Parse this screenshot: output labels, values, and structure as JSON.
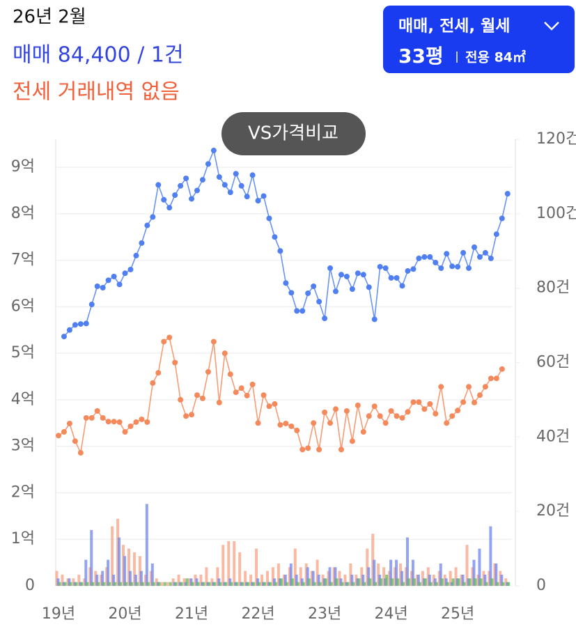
{
  "header": {
    "date": "26년 2월",
    "sale": "매매 84,400 / 1건",
    "jeonse": "전세 거래내역 없음"
  },
  "filter": {
    "types": "매매, 전세, 월세",
    "size": "33평",
    "area": "전용 84㎡"
  },
  "compare_button": "VS가격비교",
  "chart_data": {
    "type": "line",
    "categories": [
      "19년",
      null,
      null,
      null,
      null,
      null,
      null,
      null,
      null,
      null,
      null,
      null,
      "20년",
      null,
      null,
      null,
      null,
      null,
      null,
      null,
      null,
      null,
      null,
      null,
      "21년",
      null,
      null,
      null,
      null,
      null,
      null,
      null,
      null,
      null,
      null,
      null,
      "22년",
      null,
      null,
      null,
      null,
      null,
      null,
      null,
      null,
      null,
      null,
      null,
      "23년",
      null,
      null,
      null,
      null,
      null,
      null,
      null,
      null,
      null,
      null,
      null,
      "24년",
      null,
      null,
      null,
      null,
      null,
      null,
      null,
      null,
      null,
      null,
      null,
      "25년",
      null,
      null,
      null,
      null,
      null,
      null,
      null,
      null,
      null
    ],
    "ylim": [
      0,
      9.6
    ],
    "yticks": [
      0,
      {
        "value": 1,
        "label": "1억"
      },
      {
        "value": 2,
        "label": "2억"
      },
      {
        "value": 3,
        "label": "3억"
      },
      {
        "value": 4,
        "label": "4억"
      },
      {
        "value": 5,
        "label": "5억"
      },
      {
        "value": 6,
        "label": "6억"
      },
      {
        "value": 7,
        "label": "7억"
      },
      {
        "value": 8,
        "label": "8억"
      },
      {
        "value": 9,
        "label": "9억"
      }
    ],
    "y2lim": [
      0,
      120
    ],
    "y2ticks": [
      0,
      {
        "value": 20,
        "label": "20건"
      },
      {
        "value": 40,
        "label": "40건"
      },
      {
        "value": 60,
        "label": "60건"
      },
      {
        "value": 80,
        "label": "80건"
      },
      {
        "value": 100,
        "label": "100건"
      },
      {
        "value": 120,
        "label": "120건"
      }
    ],
    "grid": true,
    "series": [
      {
        "type": "bar",
        "axis": "y2",
        "color": "#f7a184",
        "values": [
          4,
          3,
          2,
          2,
          3,
          2,
          5,
          4,
          3,
          5,
          16,
          18,
          11,
          10,
          9,
          8,
          3,
          4,
          2,
          1,
          1,
          2,
          3,
          2,
          2,
          3,
          3,
          5,
          2,
          5,
          11,
          12,
          12,
          9,
          4,
          3,
          10,
          3,
          4,
          5,
          6,
          3,
          5,
          10,
          5,
          6,
          4,
          7,
          3,
          4,
          5,
          4,
          3,
          6,
          3,
          5,
          10,
          14,
          6,
          5,
          4,
          5,
          6,
          5,
          4,
          3,
          4,
          5,
          3,
          4,
          3,
          4,
          5,
          3,
          11,
          5,
          3,
          4,
          4,
          6,
          4,
          2
        ]
      },
      {
        "type": "bar",
        "axis": "y2",
        "color": "#6f86f0",
        "values": [
          2,
          1,
          2,
          1,
          1,
          7,
          15,
          3,
          4,
          7,
          3,
          13,
          8,
          4,
          3,
          4,
          22,
          6,
          1,
          0,
          0,
          1,
          1,
          1,
          2,
          2,
          1,
          1,
          1,
          2,
          1,
          2,
          1,
          1,
          1,
          1,
          2,
          1,
          1,
          2,
          2,
          3,
          6,
          3,
          2,
          5,
          4,
          3,
          2,
          5,
          5,
          2,
          1,
          3,
          2,
          3,
          5,
          7,
          3,
          2,
          7,
          7,
          4,
          13,
          7,
          3,
          2,
          3,
          2,
          6,
          2,
          1,
          2,
          3,
          2,
          7,
          10,
          3,
          16,
          6,
          3,
          1
        ]
      },
      {
        "type": "bar",
        "axis": "y2",
        "color": "#5cb85c",
        "values": [
          1,
          1,
          1,
          1,
          1,
          1,
          1,
          1,
          1,
          1,
          1,
          1,
          1,
          1,
          1,
          1,
          1,
          1,
          1,
          1,
          1,
          1,
          1,
          2,
          1,
          1,
          1,
          1,
          1,
          1,
          1,
          1,
          1,
          1,
          1,
          1,
          1,
          1,
          1,
          1,
          2,
          1,
          2,
          1,
          1,
          2,
          1,
          1,
          2,
          1,
          2,
          1,
          1,
          1,
          2,
          1,
          2,
          1,
          2,
          3,
          2,
          2,
          1,
          2,
          2,
          1,
          2,
          1,
          1,
          2,
          1,
          2,
          2,
          1,
          2,
          2,
          2,
          1,
          2,
          1,
          1,
          1
        ]
      },
      {
        "type": "line",
        "color": "#f48a5c",
        "values": [
          3.23,
          3.31,
          3.49,
          3.11,
          2.86,
          3.61,
          3.61,
          3.76,
          3.61,
          3.53,
          3.53,
          3.52,
          3.31,
          3.43,
          3.52,
          3.58,
          3.52,
          4.36,
          4.58,
          5.25,
          5.34,
          4.8,
          4.0,
          3.65,
          3.68,
          4.1,
          4.03,
          4.6,
          5.25,
          3.94,
          5.0,
          4.55,
          4.16,
          4.25,
          4.09,
          4.33,
          3.5,
          4.1,
          3.86,
          3.91,
          3.46,
          3.49,
          3.43,
          3.34,
          2.93,
          2.96,
          3.5,
          2.93,
          3.73,
          3.5,
          3.8,
          2.93,
          3.76,
          3.11,
          3.88,
          3.31,
          3.65,
          3.86,
          3.65,
          3.5,
          3.76,
          3.65,
          3.61,
          3.74,
          3.95,
          3.95,
          3.8,
          3.91,
          3.7,
          4.28,
          3.5,
          3.65,
          3.77,
          3.95,
          4.28,
          3.94,
          4.1,
          4.28,
          4.46,
          4.46,
          4.66,
          null
        ]
      },
      {
        "type": "line",
        "color": "#4f7ff0",
        "values": [
          null,
          5.36,
          5.5,
          5.61,
          5.63,
          5.64,
          6.05,
          6.44,
          6.41,
          6.57,
          6.65,
          6.48,
          6.72,
          6.8,
          7.1,
          7.37,
          7.75,
          7.93,
          8.62,
          8.3,
          8.13,
          8.4,
          8.6,
          8.76,
          8.32,
          8.5,
          8.73,
          9.07,
          9.36,
          8.79,
          8.62,
          8.46,
          8.86,
          8.6,
          8.37,
          8.83,
          8.28,
          8.38,
          7.9,
          7.5,
          7.2,
          6.51,
          6.3,
          5.91,
          5.91,
          6.29,
          6.44,
          6.11,
          5.75,
          6.83,
          6.33,
          6.69,
          6.65,
          6.38,
          6.72,
          6.69,
          6.42,
          5.73,
          6.86,
          6.83,
          6.62,
          6.62,
          6.45,
          6.77,
          6.81,
          7.04,
          7.07,
          7.07,
          6.95,
          6.83,
          7.14,
          6.87,
          6.86,
          7.16,
          6.83,
          7.28,
          7.07,
          7.16,
          7.04,
          7.56,
          7.9,
          8.43
        ]
      }
    ]
  }
}
